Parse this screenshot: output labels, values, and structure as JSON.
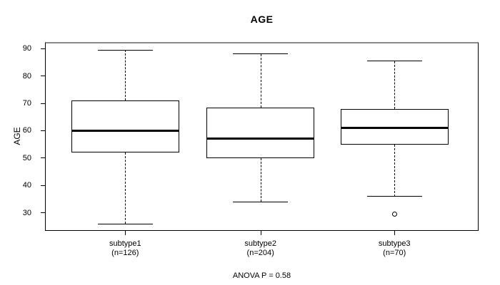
{
  "figure": {
    "background": "#ffffff",
    "frame_border_color": "#000000",
    "frame_top_border_color": "#8a8a8a",
    "line_color": "#000000"
  },
  "chart_data": {
    "type": "boxplot",
    "title": "AGE",
    "xlabel": "",
    "ylabel": "AGE",
    "ylim": [
      23.4,
      92.4
    ],
    "yticks": [
      30,
      40,
      50,
      60,
      70,
      80,
      90
    ],
    "grid": false,
    "annotation": "ANOVA P = 0.58",
    "groups": [
      {
        "label": "subtype1",
        "sublabel": "(n=126)",
        "n": 126,
        "whisker_low": 26,
        "q1": 52,
        "median": 60,
        "q3": 71,
        "whisker_high": 89.5,
        "outliers": []
      },
      {
        "label": "subtype2",
        "sublabel": "(n=204)",
        "n": 204,
        "whisker_low": 34,
        "q1": 50,
        "median": 57,
        "q3": 68.5,
        "whisker_high": 88,
        "outliers": []
      },
      {
        "label": "subtype3",
        "sublabel": "(n=70)",
        "n": 70,
        "whisker_low": 36,
        "q1": 55,
        "median": 61,
        "q3": 68,
        "whisker_high": 85.5,
        "outliers": [
          29.5
        ]
      }
    ]
  }
}
